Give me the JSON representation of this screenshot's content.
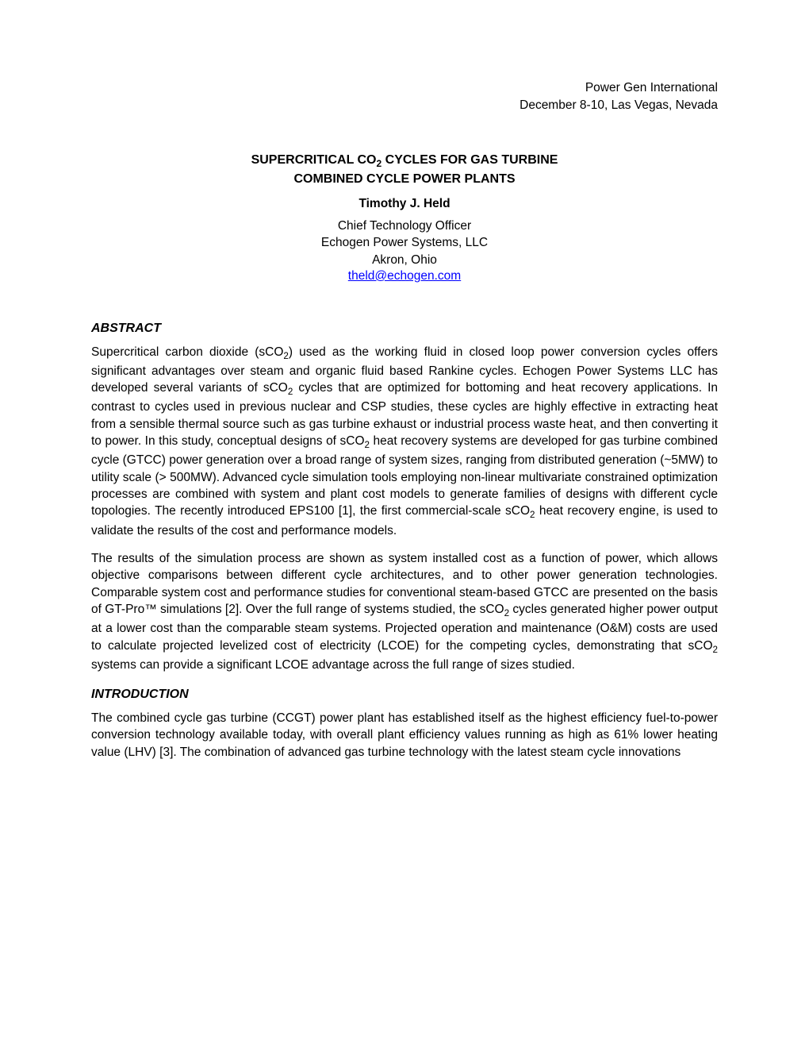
{
  "conference": {
    "name": "Power Gen International",
    "date_location": "December 8-10, Las Vegas, Nevada"
  },
  "title": {
    "line1_a": "SUPERCRITICAL CO",
    "line1_sub": "2",
    "line1_b": " CYCLES FOR GAS TURBINE",
    "line2": "COMBINED CYCLE POWER PLANTS"
  },
  "author": "Timothy J. Held",
  "affiliation": {
    "role": "Chief Technology Officer",
    "company": "Echogen Power Systems, LLC",
    "location": "Akron, Ohio"
  },
  "email": "theld@echogen.com",
  "sections": {
    "abstract": {
      "heading": "ABSTRACT",
      "p1_a": "Supercritical carbon dioxide (sCO",
      "p1_sub1": "2",
      "p1_b": ") used as the working fluid in closed loop power conversion cycles offers significant advantages over steam and organic fluid based Rankine cycles. Echogen Power Systems LLC has developed several variants of sCO",
      "p1_sub2": "2",
      "p1_c": " cycles that are optimized for bottoming and heat recovery applications. In contrast to cycles used in previous nuclear and CSP studies, these cycles are highly effective in extracting heat from a sensible thermal source such as gas turbine exhaust or industrial process waste heat, and then converting it to power. In this study, conceptual designs of sCO",
      "p1_sub3": "2",
      "p1_d": " heat recovery systems are developed for gas turbine combined cycle (GTCC) power generation over a broad range of system sizes, ranging from distributed generation (~5MW) to utility scale (> 500MW). Advanced cycle simulation tools employing non-linear multivariate constrained optimization processes are combined with system and plant cost models to generate families of designs with different cycle topologies. The recently introduced EPS100 [1], the first commercial-scale sCO",
      "p1_sub4": "2",
      "p1_e": " heat recovery engine, is used to validate the results of the cost and performance models.",
      "p2_a": "The results of the simulation process are shown as system installed cost as a function of power, which allows objective comparisons between different cycle architectures, and to other power generation technologies. Comparable system cost and performance studies for conventional steam-based GTCC are presented on the basis of GT-Pro™ simulations [2]. Over the full range of systems studied, the sCO",
      "p2_sub1": "2",
      "p2_b": " cycles generated higher power output at a lower cost than the comparable steam systems. Projected operation and maintenance (O&M) costs are used to calculate projected levelized cost of electricity (LCOE) for the competing cycles, demonstrating that sCO",
      "p2_sub2": "2",
      "p2_c": " systems can provide a significant LCOE advantage across the full range of sizes studied."
    },
    "introduction": {
      "heading": "INTRODUCTION",
      "p1": "The combined cycle gas turbine (CCGT) power plant has established itself as the highest efficiency fuel-to-power conversion technology available today, with overall plant efficiency values running as high as 61% lower heating value (LHV) [3]. The combination of advanced gas turbine technology with the latest steam cycle innovations"
    }
  }
}
